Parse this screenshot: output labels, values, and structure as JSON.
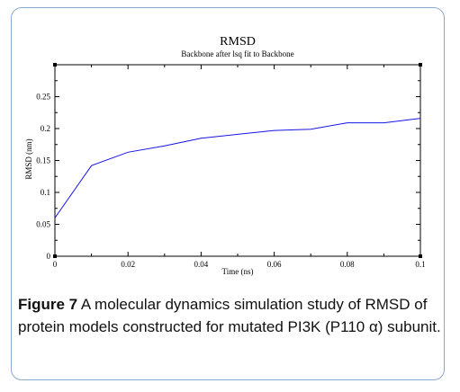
{
  "chart_data": {
    "type": "line",
    "title": "RMSD",
    "subtitle": "Backbone after lsq fit to Backbone",
    "xlabel": "Time (ns)",
    "ylabel": "RMSD (nm)",
    "xlim": [
      0,
      0.1
    ],
    "ylim": [
      0,
      0.3
    ],
    "x_ticks": [
      0,
      0.02,
      0.04,
      0.06,
      0.08,
      0.1
    ],
    "x_tick_labels": [
      "0",
      "0.02",
      "0.04",
      "0.06",
      "0.08",
      "0.1"
    ],
    "y_ticks": [
      0,
      0.05,
      0.1,
      0.15,
      0.2,
      0.25
    ],
    "y_tick_labels": [
      "0",
      "0.05",
      "0.1",
      "0.15",
      "0.2",
      "0.25"
    ],
    "grid": false,
    "series": [
      {
        "color": "#1515e6",
        "x": [
          0,
          0.01,
          0.02,
          0.03,
          0.04,
          0.05,
          0.06,
          0.07,
          0.08,
          0.09,
          0.1
        ],
        "y": [
          0.06,
          0.142,
          0.163,
          0.173,
          0.185,
          0.191,
          0.197,
          0.199,
          0.209,
          0.209,
          0.216
        ]
      }
    ]
  },
  "caption": {
    "label": "Figure 7",
    "text": " A molecular dynamics simulation study of RMSD of protein models constructed for mutated PI3K (P110 α) subunit."
  }
}
